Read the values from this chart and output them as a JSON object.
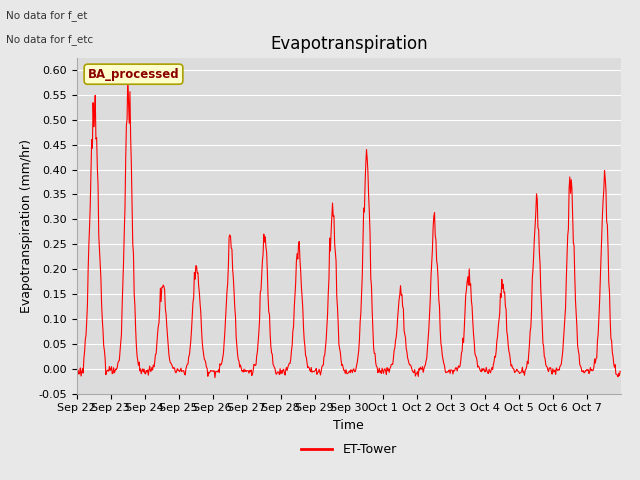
{
  "title": "Evapotranspiration",
  "ylabel": "Evapotranspiration (mm/hr)",
  "xlabel": "Time",
  "ylim": [
    -0.05,
    0.625
  ],
  "yticks": [
    -0.05,
    0.0,
    0.05,
    0.1,
    0.15,
    0.2,
    0.25,
    0.3,
    0.35,
    0.4,
    0.45,
    0.5,
    0.55,
    0.6
  ],
  "line_color": "red",
  "line_width": 0.8,
  "fig_bg_color": "#e8e8e8",
  "plot_bg_color": "#dcdcdc",
  "legend_label": "ET-Tower",
  "legend_box_color": "#ffffcc",
  "legend_box_label": "BA_processed",
  "no_data_text1": "No data for f_et",
  "no_data_text2": "No data for f_etc",
  "title_fontsize": 12,
  "axis_fontsize": 9,
  "tick_fontsize": 8,
  "daily_peaks": [
    0.53,
    0.57,
    0.17,
    0.21,
    0.26,
    0.26,
    0.24,
    0.32,
    0.42,
    0.15,
    0.29,
    0.19,
    0.17,
    0.33,
    0.37
  ],
  "peak_widths": [
    3.0,
    2.5,
    2.5,
    2.5,
    2.5,
    2.5,
    2.5,
    2.5,
    2.5,
    2.5,
    2.5,
    2.5,
    2.5,
    2.5,
    2.5
  ]
}
